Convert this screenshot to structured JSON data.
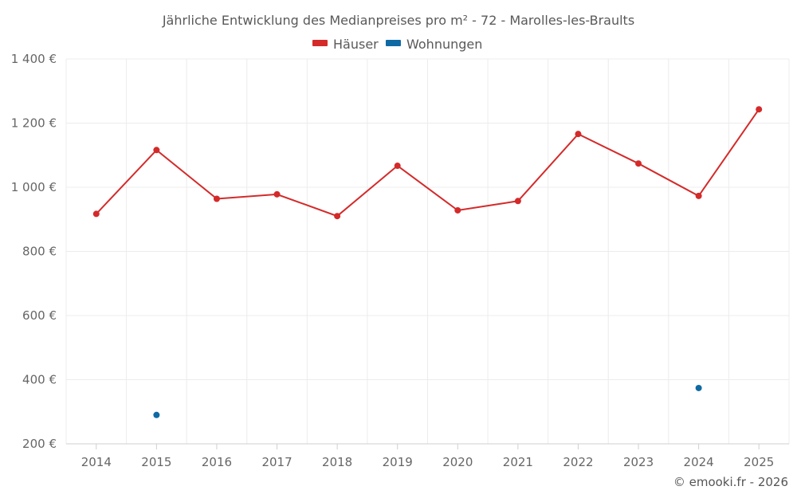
{
  "chart_data": {
    "type": "line",
    "title": "Jährliche Entwicklung des Medianpreises pro m² - 72 - Marolles-les-Braults",
    "categories": [
      "2014",
      "2015",
      "2016",
      "2017",
      "2018",
      "2019",
      "2020",
      "2021",
      "2022",
      "2023",
      "2024",
      "2025"
    ],
    "series": [
      {
        "name": "Häuser",
        "color": "#d42a2a",
        "values": [
          917,
          1116,
          964,
          978,
          910,
          1067,
          928,
          957,
          1166,
          1074,
          973,
          1243
        ]
      },
      {
        "name": "Wohnungen",
        "color": "#0f6aa3",
        "values": [
          null,
          290,
          null,
          null,
          null,
          null,
          null,
          null,
          null,
          null,
          374,
          null
        ]
      }
    ],
    "ylim": [
      200,
      1400
    ],
    "yticks": [
      200,
      400,
      600,
      800,
      1000,
      1200,
      1400
    ],
    "ytick_labels": [
      "200 €",
      "400 €",
      "600 €",
      "800 €",
      "1 000 €",
      "1 200 €",
      "1 400 €"
    ],
    "legend_position": "top-center",
    "grid": true,
    "xlabel": "",
    "ylabel": ""
  },
  "credit": "© emooki.fr - 2026"
}
